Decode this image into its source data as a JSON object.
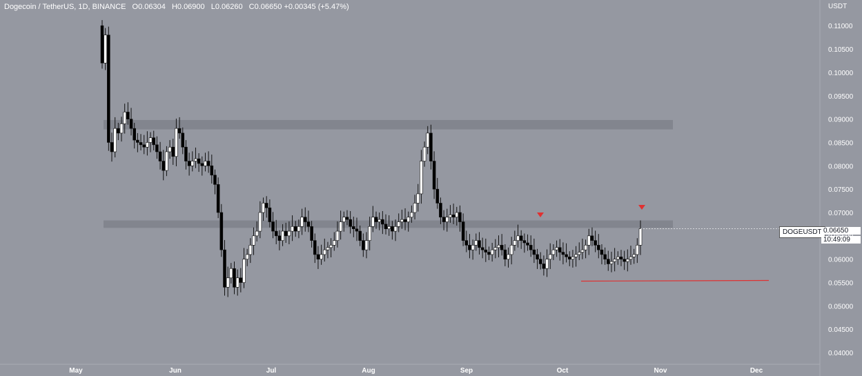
{
  "legend": {
    "symbol": "Dogecoin / TetherUS, 1D, BINANCE",
    "open_label": "O",
    "open": "0.06304",
    "high_label": "H",
    "high": "0.06900",
    "low_label": "L",
    "low": "0.06260",
    "close_label": "C",
    "close": "0.06650",
    "change": "+0.00345 (+5.47%)"
  },
  "axis_unit": "USDT",
  "symbol_tag": "DOGEUSDT",
  "last_price": "0.06650",
  "countdown": "10:49:09",
  "colors": {
    "background": "#9598a1",
    "up_candle": "#ffffff",
    "down_candle": "#000000",
    "zone": "#80838c",
    "support_line": "#e03131",
    "marker": "#e03131"
  },
  "chart_data": {
    "type": "candlestick",
    "y_ticks": [
      "0.11000",
      "0.10500",
      "0.10000",
      "0.09500",
      "0.09000",
      "0.08500",
      "0.08000",
      "0.07500",
      "0.07000",
      "0.06500",
      "0.06000",
      "0.05500",
      "0.05000",
      "0.04500",
      "0.04000"
    ],
    "x_ticks": [
      "May",
      "Jun",
      "Jul",
      "Aug",
      "Sep",
      "Oct",
      "Nov",
      "Dec"
    ],
    "ylim": [
      0.0375,
      0.1155
    ],
    "resistance_zones": [
      {
        "from": 0.0878,
        "to": 0.0898
      },
      {
        "from": 0.0667,
        "to": 0.0683
      }
    ],
    "support_line": 0.0553,
    "close_series": [
      0.102,
      0.108,
      0.085,
      0.083,
      0.088,
      0.087,
      0.089,
      0.0915,
      0.09,
      0.088,
      0.0855,
      0.085,
      0.0845,
      0.084,
      0.085,
      0.086,
      0.0845,
      0.083,
      0.081,
      0.079,
      0.083,
      0.084,
      0.082,
      0.088,
      0.087,
      0.084,
      0.081,
      0.08,
      0.081,
      0.0815,
      0.0805,
      0.08,
      0.081,
      0.08,
      0.078,
      0.076,
      0.07,
      0.062,
      0.054,
      0.056,
      0.058,
      0.054,
      0.056,
      0.055,
      0.06,
      0.061,
      0.063,
      0.065,
      0.066,
      0.07,
      0.072,
      0.071,
      0.068,
      0.066,
      0.065,
      0.064,
      0.066,
      0.065,
      0.066,
      0.067,
      0.066,
      0.067,
      0.069,
      0.068,
      0.067,
      0.064,
      0.061,
      0.06,
      0.061,
      0.062,
      0.0625,
      0.063,
      0.064,
      0.066,
      0.068,
      0.069,
      0.0685,
      0.067,
      0.0665,
      0.066,
      0.064,
      0.062,
      0.064,
      0.067,
      0.069,
      0.068,
      0.0685,
      0.0675,
      0.0665,
      0.067,
      0.066,
      0.067,
      0.068,
      0.0685,
      0.068,
      0.069,
      0.07,
      0.072,
      0.074,
      0.081,
      0.084,
      0.087,
      0.081,
      0.075,
      0.072,
      0.069,
      0.068,
      0.069,
      0.0695,
      0.069,
      0.07,
      0.068,
      0.064,
      0.063,
      0.062,
      0.063,
      0.064,
      0.0625,
      0.062,
      0.0615,
      0.061,
      0.062,
      0.0625,
      0.063,
      0.062,
      0.06,
      0.061,
      0.063,
      0.064,
      0.065,
      0.064,
      0.0635,
      0.063,
      0.062,
      0.061,
      0.06,
      0.059,
      0.058,
      0.06,
      0.061,
      0.062,
      0.0625,
      0.0615,
      0.061,
      0.0605,
      0.06,
      0.0605,
      0.061,
      0.0615,
      0.062,
      0.063,
      0.065,
      0.064,
      0.063,
      0.062,
      0.061,
      0.06,
      0.059,
      0.0595,
      0.06,
      0.0605,
      0.06,
      0.0595,
      0.06,
      0.0605,
      0.061,
      0.063,
      0.0665
    ]
  }
}
